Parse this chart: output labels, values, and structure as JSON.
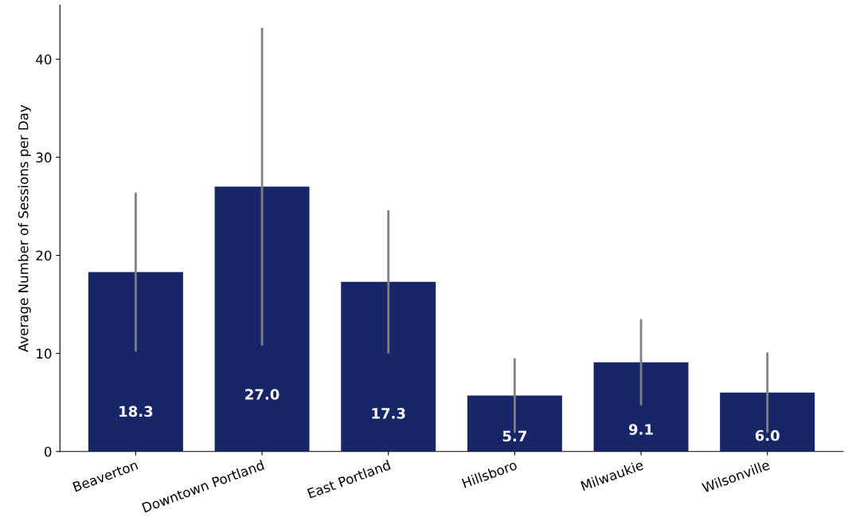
{
  "chart_data": {
    "type": "bar",
    "ylabel": "Average Number of Sessions per Day",
    "categories": [
      "Beaverton",
      "Downtown Portland",
      "East Portland",
      "Hillsboro",
      "Milwaukie",
      "Wilsonville"
    ],
    "values": [
      18.3,
      27.0,
      17.3,
      5.7,
      9.1,
      6.0
    ],
    "errors": [
      8.1,
      16.2,
      7.3,
      3.8,
      4.4,
      4.1
    ],
    "value_labels": [
      "18.3",
      "27.0",
      "17.3",
      "5.7",
      "9.1",
      "6.0"
    ],
    "color": "#172668",
    "ylim": [
      0,
      45.5
    ],
    "yticks": [
      0,
      10,
      20,
      30,
      40
    ],
    "grid": false,
    "legend": false
  }
}
